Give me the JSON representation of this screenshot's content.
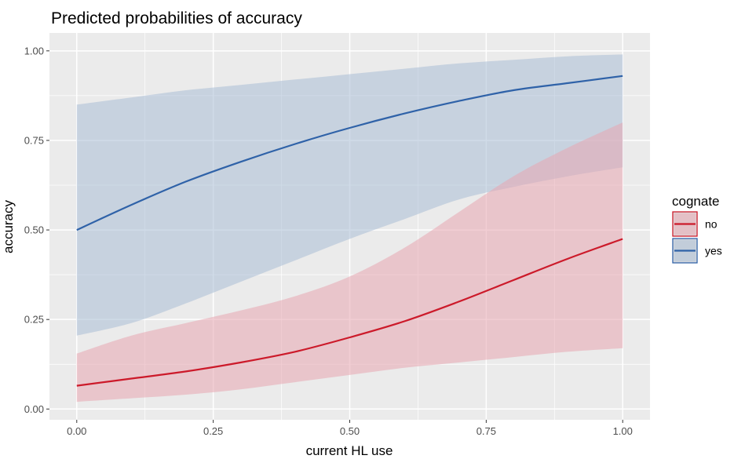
{
  "chart_data": {
    "type": "line",
    "title": "Predicted probabilities of accuracy",
    "xlabel": "current HL use",
    "ylabel": "accuracy",
    "xlim": [
      -0.05,
      1.05
    ],
    "ylim": [
      -0.03,
      1.05
    ],
    "x_ticks": [
      0.0,
      0.25,
      0.5,
      0.75,
      1.0
    ],
    "x_tick_labels": [
      "0.00",
      "0.25",
      "0.50",
      "0.75",
      "1.00"
    ],
    "y_ticks": [
      0.0,
      0.25,
      0.5,
      0.75,
      1.0
    ],
    "y_tick_labels": [
      "0.00",
      "0.25",
      "0.50",
      "0.75",
      "1.00"
    ],
    "grid": true,
    "legend": {
      "title": "cognate",
      "position": "right"
    },
    "series": [
      {
        "name": "no",
        "color": "#cc1a2a",
        "band_color": "#e8a6b0",
        "x": [
          0.0,
          0.1,
          0.2,
          0.3,
          0.4,
          0.5,
          0.6,
          0.7,
          0.8,
          0.9,
          1.0
        ],
        "y": [
          0.065,
          0.085,
          0.105,
          0.13,
          0.16,
          0.2,
          0.245,
          0.3,
          0.36,
          0.42,
          0.475
        ],
        "lower": [
          0.02,
          0.03,
          0.04,
          0.055,
          0.075,
          0.095,
          0.115,
          0.13,
          0.145,
          0.16,
          0.17
        ],
        "upper": [
          0.155,
          0.205,
          0.24,
          0.275,
          0.315,
          0.37,
          0.45,
          0.55,
          0.65,
          0.73,
          0.8
        ]
      },
      {
        "name": "yes",
        "color": "#2f62a8",
        "band_color": "#a9bed6",
        "x": [
          0.0,
          0.1,
          0.2,
          0.3,
          0.4,
          0.5,
          0.6,
          0.7,
          0.8,
          0.9,
          1.0
        ],
        "y": [
          0.5,
          0.57,
          0.635,
          0.69,
          0.74,
          0.785,
          0.825,
          0.86,
          0.89,
          0.91,
          0.93
        ],
        "lower": [
          0.205,
          0.24,
          0.295,
          0.355,
          0.415,
          0.475,
          0.53,
          0.585,
          0.62,
          0.65,
          0.675
        ],
        "upper": [
          0.85,
          0.87,
          0.89,
          0.905,
          0.92,
          0.935,
          0.95,
          0.965,
          0.975,
          0.985,
          0.99
        ]
      }
    ]
  }
}
